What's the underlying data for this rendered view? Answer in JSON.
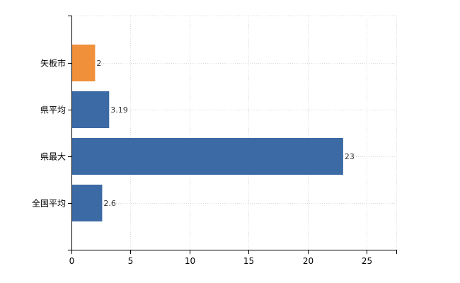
{
  "chart_data": {
    "type": "bar",
    "orientation": "horizontal",
    "categories": [
      "矢板市",
      "県平均",
      "県最大",
      "全国平均"
    ],
    "values": [
      2,
      3.19,
      23,
      2.6
    ],
    "value_labels": [
      "2",
      "3.19",
      "23",
      "2.6"
    ],
    "colors": [
      "#f0903a",
      "#3b6aa5",
      "#3b6aa5",
      "#3b6aa5"
    ],
    "x_ticks": [
      0,
      5,
      10,
      15,
      20,
      25
    ],
    "xlim": [
      0,
      27.5
    ],
    "grid": true,
    "title": "",
    "xlabel": "",
    "ylabel": ""
  }
}
